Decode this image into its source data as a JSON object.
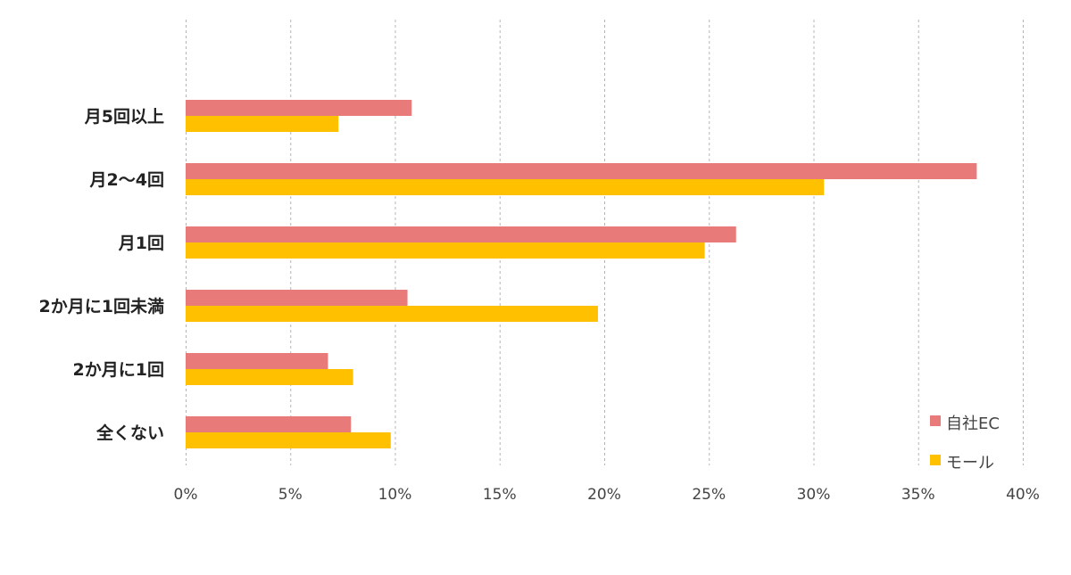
{
  "chart_data": {
    "type": "bar",
    "orientation": "horizontal",
    "categories": [
      "月5回以上",
      "月2～4回",
      "月1回",
      "2か月に1回未満",
      "2か月に1回",
      "全くない"
    ],
    "series": [
      {
        "name": "自社EC",
        "color": "#e97a7a",
        "values": [
          10.8,
          37.8,
          26.3,
          10.6,
          6.8,
          7.9
        ]
      },
      {
        "name": "モール",
        "color": "#ffc000",
        "values": [
          7.3,
          30.5,
          24.8,
          19.7,
          8.0,
          9.8
        ]
      }
    ],
    "xlim": [
      0,
      40
    ],
    "xticks": [
      0,
      5,
      10,
      15,
      20,
      25,
      30,
      35,
      40
    ],
    "xtick_labels": [
      "0%",
      "5%",
      "10%",
      "15%",
      "20%",
      "25%",
      "30%",
      "35%",
      "40%"
    ],
    "title": "",
    "xlabel": "",
    "ylabel": "",
    "grid": "vertical-dashed",
    "legend_position": "bottom-right"
  }
}
